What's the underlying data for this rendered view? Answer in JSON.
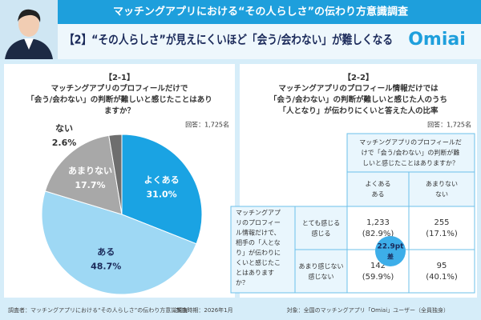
{
  "header": {
    "banner": "マッチングアプリにおける“その人らしさ”の伝わり方意識調査",
    "headline": "【2】“その人らしさ”が見えにくいほど「会う/会わない」が難しくなる",
    "logo": "Omiai"
  },
  "chart_data": {
    "type": "pie",
    "label": "【2-1】",
    "title_lines": [
      "マッチングアプリのプロフィールだけで",
      "「会う/会わない」の判断が難しいと感じたことはあり",
      "ますか？"
    ],
    "respondents": "回答：1,725名",
    "categories": [
      "よくある",
      "ある",
      "あまりない",
      "ない"
    ],
    "values": [
      31.0,
      48.7,
      17.7,
      2.6
    ],
    "value_labels": [
      "31.0%",
      "48.7%",
      "17.7%",
      "2.6%"
    ],
    "colors": [
      "#1aa3e3",
      "#9ed8f4",
      "#a8a8a8",
      "#6e6e6e"
    ]
  },
  "panel2": {
    "label": "【2-2】",
    "title_lines": [
      "マッチングアプリのプロフィール情報だけでは",
      "「会う/会わない」の判断が難しいと感じた人のうち",
      "「人となり」が伝わりにくいと答えた人の比率"
    ],
    "respondents": "回答：1,725名",
    "table": {
      "col_header": [
        "マッチングアプリのプロフィールだ",
        "けで「会う/会わない」の判断が難",
        "しいと感じたことはありますか？"
      ],
      "col_labels": [
        [
          "よくある",
          "ある"
        ],
        [
          "あまりない",
          "ない"
        ]
      ],
      "row_header": [
        "マッチングアプ",
        "リのプロフィー",
        "ル情報だけで、",
        "相手の「人とな",
        "り」が伝わりに",
        "くいと感じたこ",
        "とはあります",
        "か？"
      ],
      "row_labels": [
        [
          "とても感じる",
          "感じる"
        ],
        [
          "あまり感じない",
          "感じない"
        ]
      ],
      "rows": [
        [
          [
            "1,233",
            "(82.9%)"
          ],
          [
            "255",
            "(17.1%)"
          ]
        ],
        [
          [
            "142",
            "(59.9%)"
          ],
          [
            "95",
            "(40.1%)"
          ]
        ]
      ]
    },
    "badge": [
      "22.9pt",
      "差"
    ]
  },
  "footer": [
    "調査者：マッチングアプリにおける“その人らしさ”の伝わり方意識調査",
    "実施時期：2026年1月",
    "対象：全国のマッチングアプリ「Omiai」ユーザー（全員独身）"
  ]
}
